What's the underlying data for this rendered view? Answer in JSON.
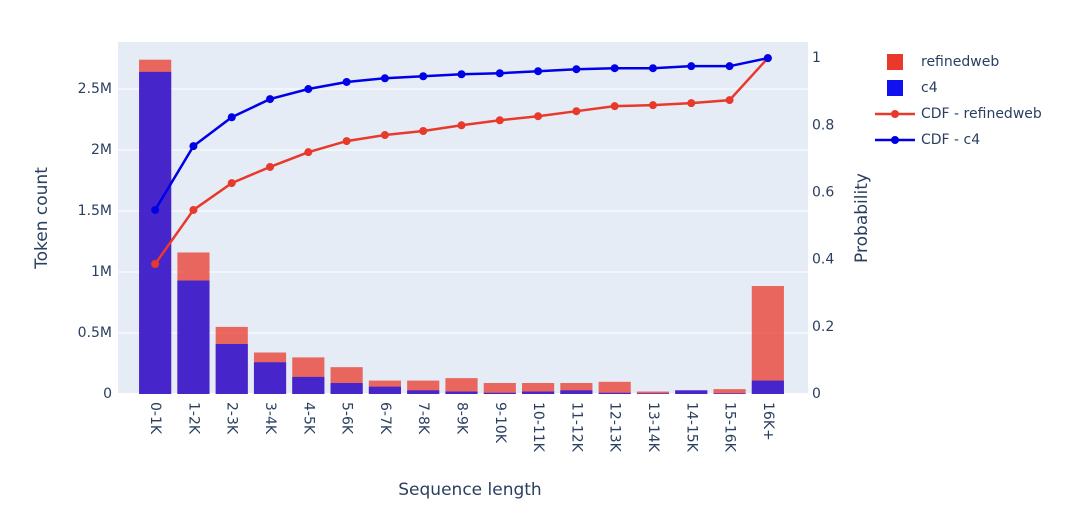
{
  "chart_data": {
    "type": "bar",
    "x_label": "Sequence length",
    "y_label": "Token count",
    "y2_label": "Probability",
    "categories": [
      "0-1K",
      "1-2K",
      "2-3K",
      "3-4K",
      "4-5K",
      "5-6K",
      "6-7K",
      "7-8K",
      "8-9K",
      "9-10K",
      "10-11K",
      "11-12K",
      "12-13K",
      "13-14K",
      "14-15K",
      "15-16K",
      "16K+"
    ],
    "series": [
      {
        "name": "refinedweb",
        "type": "bar",
        "color": "#e8392b",
        "values": [
          2740000,
          1160000,
          550000,
          340000,
          300000,
          220000,
          110000,
          110000,
          130000,
          90000,
          90000,
          90000,
          100000,
          20000,
          30000,
          40000,
          885000
        ]
      },
      {
        "name": "c4",
        "type": "bar",
        "color": "#1010f0",
        "values": [
          2640000,
          930000,
          410000,
          260000,
          140000,
          90000,
          60000,
          30000,
          20000,
          10000,
          20000,
          30000,
          10000,
          5000,
          30000,
          5000,
          110000
        ]
      },
      {
        "name": "CDF - refinedweb",
        "type": "line",
        "axis": "y2",
        "color": "#e8392b",
        "values": [
          0.387,
          0.548,
          0.628,
          0.676,
          0.72,
          0.753,
          0.771,
          0.783,
          0.8,
          0.815,
          0.827,
          0.842,
          0.857,
          0.86,
          0.866,
          0.875,
          1.0
        ]
      },
      {
        "name": "CDF - c4",
        "type": "line",
        "axis": "y2",
        "color": "#0000e6",
        "values": [
          0.548,
          0.738,
          0.824,
          0.878,
          0.908,
          0.929,
          0.94,
          0.946,
          0.952,
          0.955,
          0.961,
          0.967,
          0.97,
          0.97,
          0.976,
          0.976,
          1.0
        ]
      }
    ],
    "ylim": [
      0,
      2885000
    ],
    "yticks": [
      0,
      {
        "value": 500000,
        "label": "0.5M"
      },
      {
        "value": 1000000,
        "label": "1M"
      },
      {
        "value": 1500000,
        "label": "1.5M"
      },
      {
        "value": 2000000,
        "label": "2M"
      },
      {
        "value": 2500000,
        "label": "2.5M"
      }
    ],
    "y2lim": [
      0,
      1.048
    ],
    "y2ticks": [
      0,
      0.2,
      0.4,
      0.6,
      0.8,
      1
    ],
    "grid": true,
    "bar_opacity": 0.75
  }
}
